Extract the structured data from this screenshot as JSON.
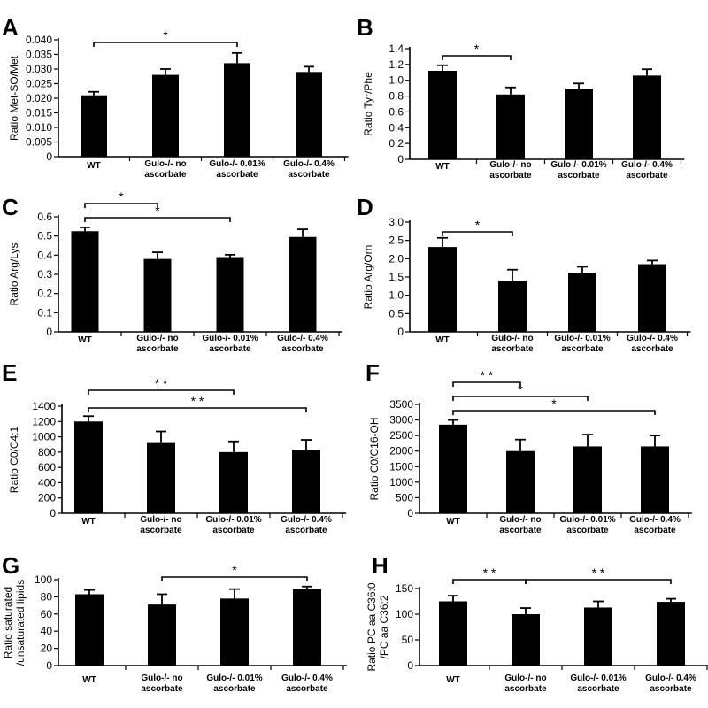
{
  "chart_data": [
    {
      "panel": "A",
      "type": "bar",
      "categories": [
        "WT",
        "Gulo-/- no ascorbate",
        "Gulo-/- 0.01% ascorbate",
        "Gulo-/- 0.4% ascorbate"
      ],
      "values": [
        0.021,
        0.028,
        0.032,
        0.029
      ],
      "errors": [
        0.0012,
        0.002,
        0.0035,
        0.0018
      ],
      "ylabel": "Ratio Met-SO/Met",
      "ylim": [
        0,
        0.04
      ],
      "ticks": [
        "0",
        "0.005",
        "0.010",
        "0.015",
        "0.020",
        "0.025",
        "0.030",
        "0.035",
        "0.040"
      ],
      "significance": [
        {
          "from": 0,
          "to": 2,
          "label": "*"
        }
      ]
    },
    {
      "panel": "B",
      "type": "bar",
      "categories": [
        "WT",
        "Gulo-/- no ascorbate",
        "Gulo-/- 0.01% ascorbate",
        "Gulo-/- 0.4% ascorbate"
      ],
      "values": [
        1.12,
        0.82,
        0.89,
        1.06
      ],
      "errors": [
        0.07,
        0.09,
        0.07,
        0.08
      ],
      "ylabel": "Ratio Tyr/Phe",
      "ylim": [
        0,
        1.4
      ],
      "ticks": [
        "0",
        "0.2",
        "0.4",
        "0.6",
        "0.8",
        "1.0",
        "1.2",
        "1.4"
      ],
      "significance": [
        {
          "from": 0,
          "to": 1,
          "label": "*"
        }
      ]
    },
    {
      "panel": "C",
      "type": "bar",
      "categories": [
        "WT",
        "Gulo-/- no ascorbate",
        "Gulo-/- 0.01% ascorbate",
        "Gulo-/- 0.4% ascorbate"
      ],
      "values": [
        0.525,
        0.38,
        0.39,
        0.495
      ],
      "errors": [
        0.02,
        0.035,
        0.012,
        0.04
      ],
      "ylabel": "Ratio Arg/Lys",
      "ylim": [
        0,
        0.6
      ],
      "ticks": [
        "0",
        "0.1",
        "0.2",
        "0.3",
        "0.4",
        "0.5",
        "0.6"
      ],
      "significance": [
        {
          "from": 0,
          "to": 1,
          "label": "*"
        },
        {
          "from": 0,
          "to": 2,
          "label": "*"
        }
      ]
    },
    {
      "panel": "D",
      "type": "bar",
      "categories": [
        "WT",
        "Gulo-/- no ascorbate",
        "Gulo-/- 0.01% ascorbate",
        "Gulo-/- 0.4% ascorbate"
      ],
      "values": [
        2.32,
        1.4,
        1.62,
        1.85
      ],
      "errors": [
        0.25,
        0.3,
        0.16,
        0.1
      ],
      "ylabel": "Ratio Arg/Orn",
      "ylim": [
        0,
        3.0
      ],
      "ticks": [
        "0",
        "0.5",
        "1.0",
        "1.5",
        "2.0",
        "2.5",
        "3.0"
      ],
      "significance": [
        {
          "from": 0,
          "to": 1,
          "label": "*"
        }
      ]
    },
    {
      "panel": "E",
      "type": "bar",
      "categories": [
        "WT",
        "Gulo-/- no ascorbate",
        "Gulo-/- 0.01% ascorbate",
        "Gulo-/- 0.4% ascorbate"
      ],
      "values": [
        1200,
        930,
        800,
        830
      ],
      "errors": [
        70,
        140,
        140,
        130
      ],
      "ylabel": "Ratio C0/C4:1",
      "ylim": [
        0,
        1400
      ],
      "ticks": [
        "0",
        "200",
        "400",
        "600",
        "800",
        "1000",
        "1200",
        "1400"
      ],
      "significance": [
        {
          "from": 0,
          "to": 2,
          "label": "* *"
        },
        {
          "from": 0,
          "to": 3,
          "label": "* *"
        }
      ]
    },
    {
      "panel": "F",
      "type": "bar",
      "categories": [
        "WT",
        "Gulo-/- no ascorbate",
        "Gulo-/- 0.01% ascorbate",
        "Gulo-/- 0.4% ascorbate"
      ],
      "values": [
        2850,
        2000,
        2150,
        2150
      ],
      "errors": [
        150,
        370,
        380,
        350
      ],
      "ylabel": "Ratio C0/C16-OH",
      "ylim": [
        0,
        3500
      ],
      "ticks": [
        "0",
        "500",
        "1000",
        "1500",
        "2000",
        "2500",
        "3000",
        "3500"
      ],
      "significance": [
        {
          "from": 0,
          "to": 1,
          "label": "* *"
        },
        {
          "from": 0,
          "to": 2,
          "label": "*"
        },
        {
          "from": 0,
          "to": 3,
          "label": "*"
        }
      ]
    },
    {
      "panel": "G",
      "type": "bar",
      "categories": [
        "WT",
        "Gulo-/- no ascorbate",
        "Gulo-/- 0.01% ascorbate",
        "Gulo-/- 0.4% ascorbate"
      ],
      "values": [
        83,
        71,
        78,
        89
      ],
      "errors": [
        5,
        12,
        11,
        3
      ],
      "ylabel": "Ratio saturated /unsaturated lipids",
      "ylim": [
        0,
        100
      ],
      "ticks": [
        "0",
        "20",
        "40",
        "60",
        "80",
        "100"
      ],
      "significance": [
        {
          "from": 1,
          "to": 3,
          "label": "*"
        }
      ]
    },
    {
      "panel": "H",
      "type": "bar",
      "categories": [
        "WT",
        "Gulo-/- no ascorbate",
        "Gulo-/- 0.01% ascorbate",
        "Gulo-/- 0.4% ascorbate"
      ],
      "values": [
        125,
        100,
        113,
        124
      ],
      "errors": [
        11,
        12,
        12,
        6
      ],
      "ylabel": "Ratio PC aa C36:0 /PC aa C36:2",
      "ylim": [
        0,
        150
      ],
      "ticks": [
        "0",
        "50",
        "100",
        "150"
      ],
      "significance": [
        {
          "from": 0,
          "to": 1,
          "label": "* *"
        },
        {
          "from": 1,
          "to": 3,
          "label": "* *"
        }
      ]
    }
  ]
}
